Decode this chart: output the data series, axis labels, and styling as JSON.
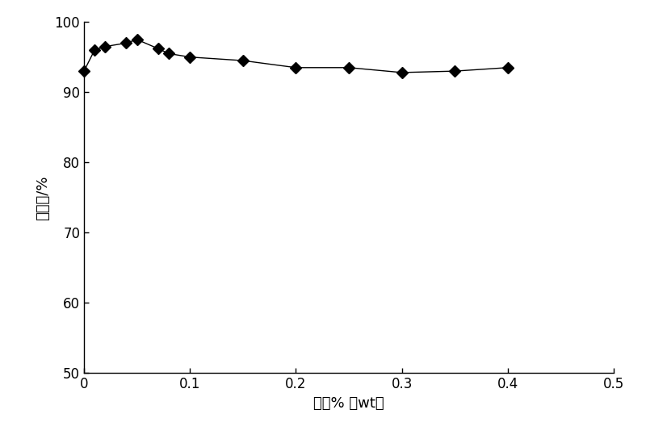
{
  "x": [
    0,
    0.01,
    0.02,
    0.04,
    0.05,
    0.07,
    0.08,
    0.1,
    0.15,
    0.2,
    0.25,
    0.3,
    0.35,
    0.4
  ],
  "y": [
    93.0,
    96.0,
    96.5,
    97.0,
    97.5,
    96.2,
    95.5,
    95.0,
    94.5,
    93.5,
    93.5,
    92.8,
    93.0,
    93.5
  ],
  "xlabel": "浓度% （wt）",
  "ylabel": "透光率/%",
  "xlim": [
    0,
    0.5
  ],
  "ylim": [
    50,
    100
  ],
  "xticks": [
    0,
    0.1,
    0.2,
    0.3,
    0.4,
    0.5
  ],
  "yticks": [
    50,
    60,
    70,
    80,
    90,
    100
  ],
  "line_color": "#000000",
  "marker": "D",
  "marker_color": "#000000",
  "marker_size": 7,
  "line_width": 1.0,
  "background_color": "#ffffff",
  "fig_width": 8.0,
  "fig_height": 5.44,
  "dpi": 100
}
